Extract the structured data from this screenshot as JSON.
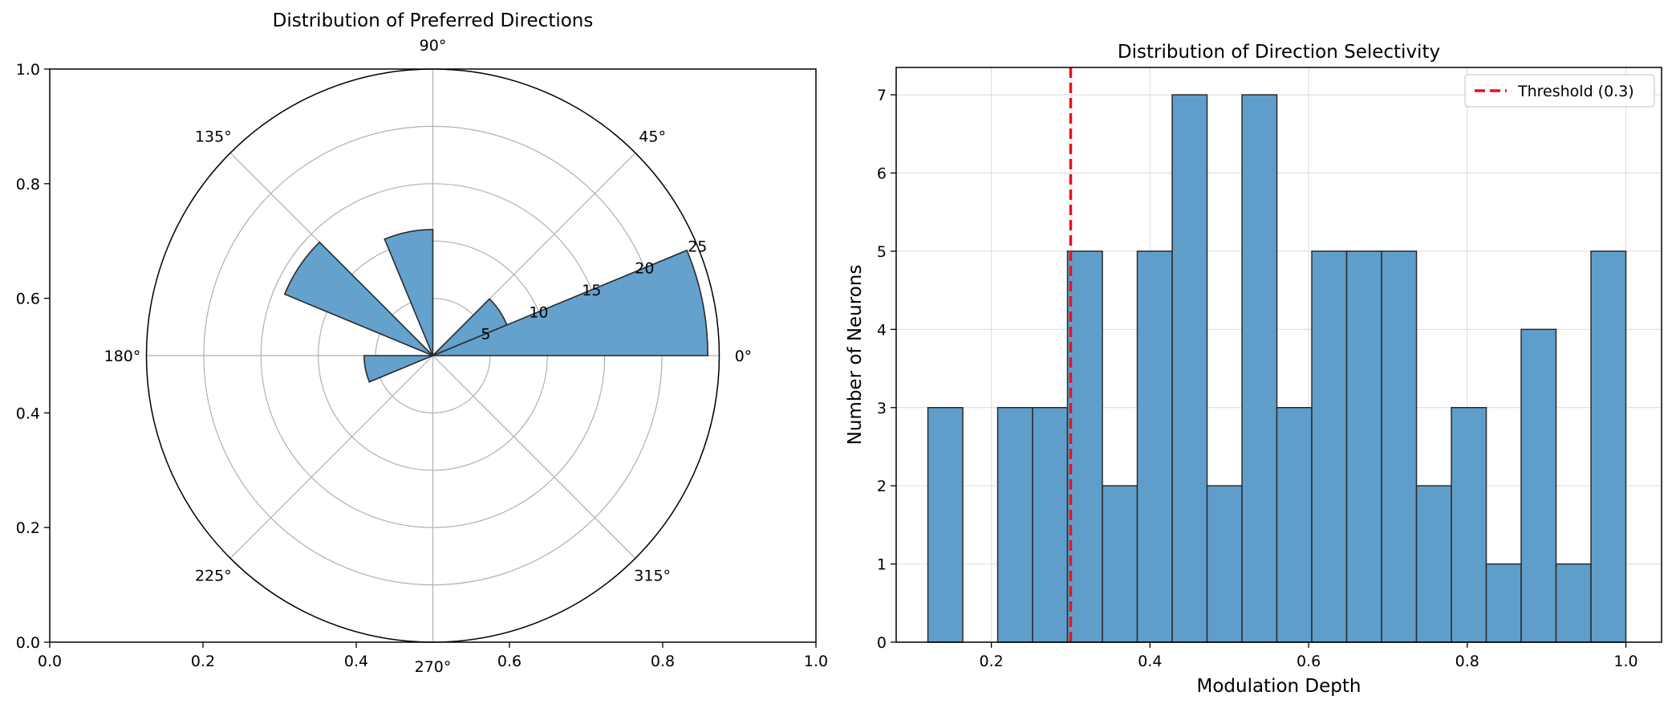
{
  "chart_data": [
    {
      "type": "bar",
      "subtype": "polar-rose",
      "title": "Distribution of Preferred Directions",
      "theta_unit": "degrees",
      "angle_labels": [
        "0°",
        "45°",
        "90°",
        "135°",
        "180°",
        "225°",
        "270°",
        "315°"
      ],
      "radial_ticks": [
        5,
        10,
        15,
        20,
        25
      ],
      "radial_tick_labels": [
        "5",
        "10",
        "15",
        "20",
        "25"
      ],
      "rlim": [
        0,
        25
      ],
      "bar_width_deg": 22.5,
      "bars": [
        {
          "angle_start": 0,
          "value": 24
        },
        {
          "angle_start": 22.5,
          "value": 7
        },
        {
          "angle_start": 90,
          "value": 11
        },
        {
          "angle_start": 135,
          "value": 14
        },
        {
          "angle_start": 180,
          "value": 6
        }
      ],
      "outer_axes_ticks": [
        "0.0",
        "0.2",
        "0.4",
        "0.6",
        "0.8",
        "1.0"
      ],
      "outer_axes_range": [
        0,
        1
      ],
      "color": "#5f9ecb",
      "edge_color": "#2a2a2a",
      "grid": true
    },
    {
      "type": "bar",
      "subtype": "histogram",
      "title": "Distribution of Direction Selectivity",
      "xlabel": "Modulation Depth",
      "ylabel": "Number of Neurons",
      "bins": [
        {
          "x0": 0.12,
          "x1": 0.164,
          "count": 3
        },
        {
          "x0": 0.164,
          "x1": 0.208,
          "count": 0
        },
        {
          "x0": 0.208,
          "x1": 0.252,
          "count": 3
        },
        {
          "x0": 0.252,
          "x1": 0.296,
          "count": 3
        },
        {
          "x0": 0.296,
          "x1": 0.34,
          "count": 5
        },
        {
          "x0": 0.34,
          "x1": 0.384,
          "count": 2
        },
        {
          "x0": 0.384,
          "x1": 0.428,
          "count": 5
        },
        {
          "x0": 0.428,
          "x1": 0.472,
          "count": 7
        },
        {
          "x0": 0.472,
          "x1": 0.516,
          "count": 2
        },
        {
          "x0": 0.516,
          "x1": 0.56,
          "count": 7
        },
        {
          "x0": 0.56,
          "x1": 0.604,
          "count": 3
        },
        {
          "x0": 0.604,
          "x1": 0.648,
          "count": 5
        },
        {
          "x0": 0.648,
          "x1": 0.692,
          "count": 5
        },
        {
          "x0": 0.692,
          "x1": 0.736,
          "count": 5
        },
        {
          "x0": 0.736,
          "x1": 0.78,
          "count": 2
        },
        {
          "x0": 0.78,
          "x1": 0.824,
          "count": 3
        },
        {
          "x0": 0.824,
          "x1": 0.868,
          "count": 1
        },
        {
          "x0": 0.868,
          "x1": 0.912,
          "count": 4
        },
        {
          "x0": 0.912,
          "x1": 0.956,
          "count": 1
        },
        {
          "x0": 0.956,
          "x1": 1.0,
          "count": 5
        }
      ],
      "xlim": [
        0.08,
        1.045
      ],
      "ylim": [
        0,
        7.35
      ],
      "xticks": [
        0.2,
        0.4,
        0.6,
        0.8,
        1.0
      ],
      "xtick_labels": [
        "0.2",
        "0.4",
        "0.6",
        "0.8",
        "1.0"
      ],
      "yticks": [
        0,
        1,
        2,
        3,
        4,
        5,
        6,
        7
      ],
      "ytick_labels": [
        "0",
        "1",
        "2",
        "3",
        "4",
        "5",
        "6",
        "7"
      ],
      "threshold": {
        "x": 0.3,
        "label": "Threshold (0.3)",
        "color": "#e8121b"
      },
      "legend_position": "top-right",
      "color": "#5f9ecb",
      "edge_color": "#2a2a2a",
      "grid": true
    }
  ]
}
